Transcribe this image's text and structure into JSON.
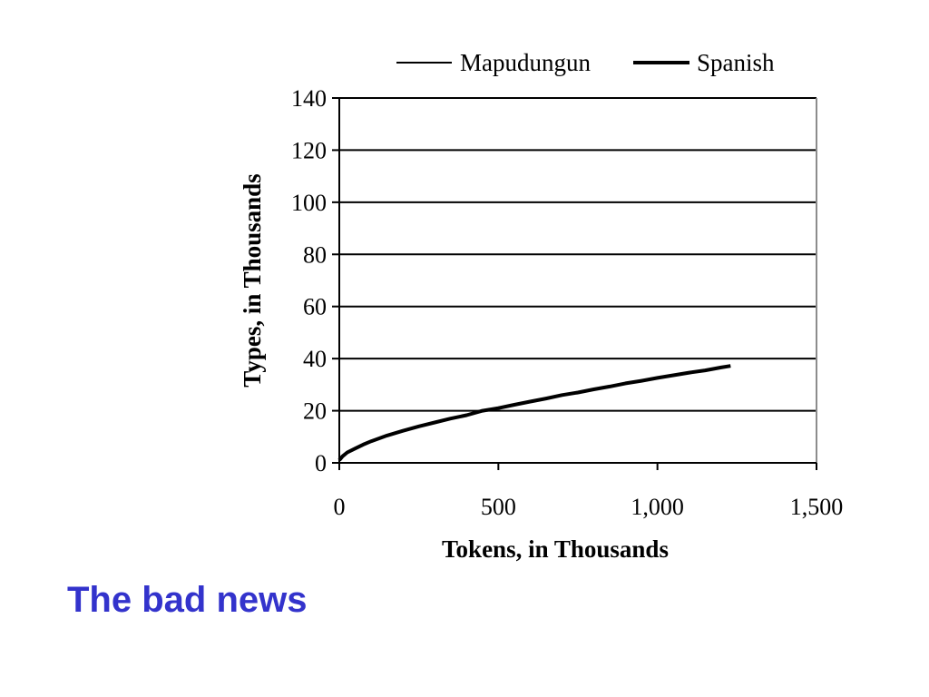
{
  "caption": {
    "text": "The bad news",
    "color": "#3333CC"
  },
  "chart_data": {
    "type": "line",
    "title": "",
    "xlabel": "Tokens, in Thousands",
    "ylabel": "Types, in Thousands",
    "xlim": [
      0,
      1500
    ],
    "ylim": [
      0,
      140
    ],
    "x_ticks": [
      "0",
      "500",
      "1,000",
      "1,500"
    ],
    "y_ticks": [
      "0",
      "20",
      "40",
      "60",
      "80",
      "100",
      "120",
      "140"
    ],
    "grid": "horizontal",
    "legend_position": "top",
    "series": [
      {
        "name": "Mapudungun",
        "line_weight": "thin",
        "color": "#000000",
        "x": [],
        "y": []
      },
      {
        "name": "Spanish",
        "line_weight": "thick",
        "color": "#000000",
        "x": [
          0,
          10,
          25,
          50,
          75,
          100,
          150,
          200,
          250,
          300,
          350,
          400,
          450,
          500,
          550,
          600,
          650,
          700,
          750,
          800,
          850,
          900,
          950,
          1000,
          1050,
          1100,
          1150,
          1200,
          1230
        ],
        "y": [
          1,
          2.5,
          4,
          5.5,
          7,
          8.3,
          10.5,
          12.3,
          14,
          15.5,
          17,
          18.3,
          20,
          21,
          22.3,
          23.5,
          24.7,
          26,
          27,
          28.2,
          29.3,
          30.5,
          31.5,
          32.6,
          33.6,
          34.6,
          35.5,
          36.6,
          37.2
        ]
      }
    ]
  }
}
